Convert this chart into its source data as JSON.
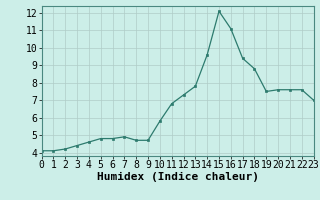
{
  "x": [
    0,
    1,
    2,
    3,
    4,
    5,
    6,
    7,
    8,
    9,
    10,
    11,
    12,
    13,
    14,
    15,
    16,
    17,
    18,
    19,
    20,
    21,
    22,
    23
  ],
  "y": [
    4.1,
    4.1,
    4.2,
    4.4,
    4.6,
    4.8,
    4.8,
    4.9,
    4.7,
    4.7,
    5.8,
    6.8,
    7.3,
    7.8,
    9.6,
    12.1,
    11.1,
    9.4,
    8.8,
    7.5,
    7.6,
    7.6,
    7.6,
    7.0
  ],
  "xlabel": "Humidex (Indice chaleur)",
  "xlim": [
    0,
    23
  ],
  "ylim": [
    3.8,
    12.4
  ],
  "yticks": [
    4,
    5,
    6,
    7,
    8,
    9,
    10,
    11,
    12
  ],
  "xticks": [
    0,
    1,
    2,
    3,
    4,
    5,
    6,
    7,
    8,
    9,
    10,
    11,
    12,
    13,
    14,
    15,
    16,
    17,
    18,
    19,
    20,
    21,
    22,
    23
  ],
  "line_color": "#2d7b6e",
  "marker_color": "#2d7b6e",
  "bg_color": "#cceee8",
  "grid_color": "#b0ccc8",
  "xlabel_fontsize": 8,
  "tick_fontsize": 7
}
